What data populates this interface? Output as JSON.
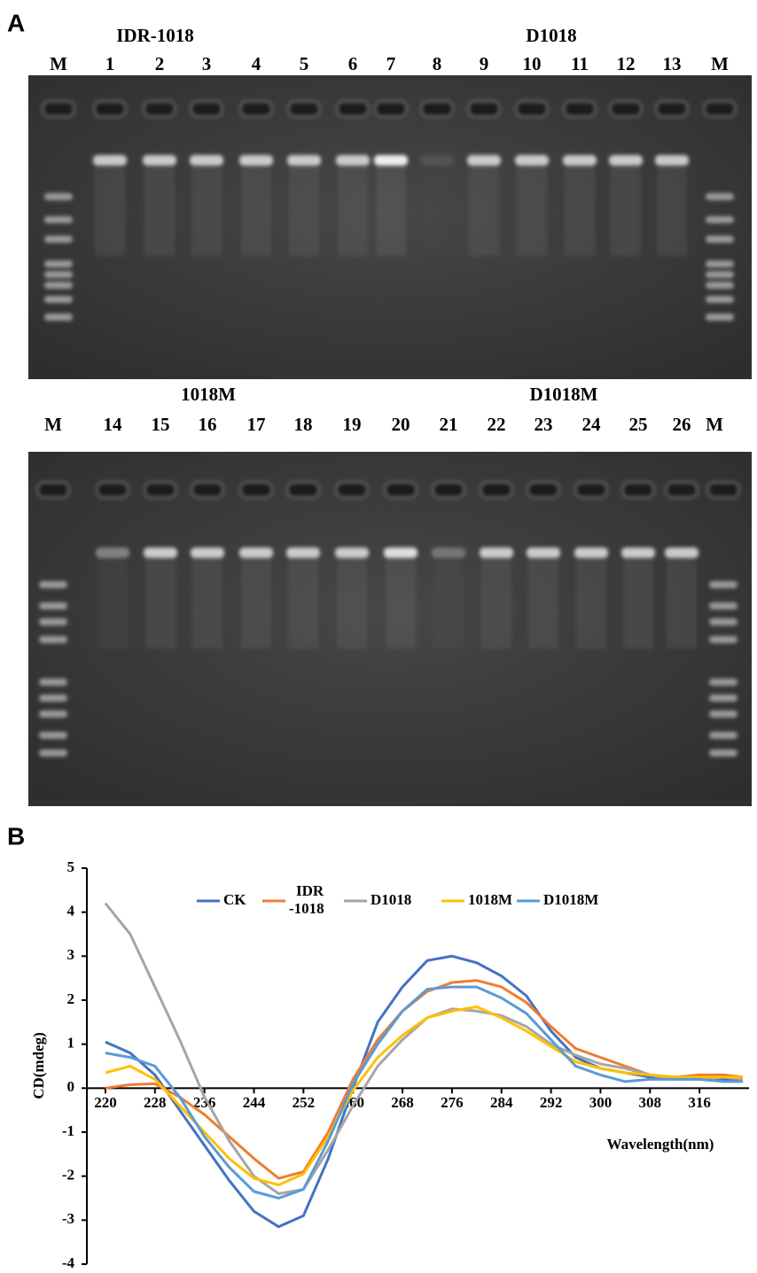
{
  "panel_a": {
    "label": "A",
    "gels": [
      {
        "groups": [
          "IDR-1018",
          "D1018"
        ],
        "lanes": [
          "M",
          "1",
          "2",
          "3",
          "4",
          "5",
          "6",
          "7",
          "8",
          "9",
          "10",
          "11",
          "12",
          "13",
          "M"
        ]
      },
      {
        "groups": [
          "1018M",
          "D1018M"
        ],
        "lanes": [
          "M",
          "14",
          "15",
          "16",
          "17",
          "18",
          "19",
          "20",
          "21",
          "22",
          "23",
          "24",
          "25",
          "26",
          "M"
        ]
      }
    ]
  },
  "panel_b": {
    "label": "B"
  },
  "chart_data": {
    "type": "line",
    "x_label": "Wavelength(nm)",
    "y_label": "CD(mdeg)",
    "x": [
      220,
      224,
      228,
      232,
      236,
      240,
      244,
      248,
      252,
      256,
      260,
      264,
      268,
      272,
      276,
      280,
      284,
      288,
      292,
      296,
      300,
      304,
      308,
      312,
      316,
      320,
      323
    ],
    "xlim": [
      217,
      324
    ],
    "xticks": [
      220,
      228,
      236,
      244,
      252,
      260,
      268,
      276,
      284,
      292,
      300,
      308,
      316
    ],
    "ylim": [
      -4,
      5
    ],
    "yticks": [
      -4,
      -3,
      -2,
      -1,
      0,
      1,
      2,
      3,
      4,
      5
    ],
    "legend": "top",
    "series": [
      {
        "name": "CK",
        "color": "#4472c4",
        "values": [
          1.05,
          0.8,
          0.3,
          -0.5,
          -1.3,
          -2.1,
          -2.8,
          -3.15,
          -2.9,
          -1.6,
          0,
          1.5,
          2.3,
          2.9,
          3.0,
          2.85,
          2.55,
          2.1,
          1.3,
          0.7,
          0.45,
          0.35,
          0.25,
          0.25,
          0.25,
          0.2,
          0.2
        ]
      },
      {
        "name": "IDR\n-1018",
        "color": "#ed7d31",
        "values": [
          0,
          0.08,
          0.1,
          -0.2,
          -0.6,
          -1.1,
          -1.6,
          -2.05,
          -1.9,
          -1.0,
          0.2,
          1.1,
          1.75,
          2.2,
          2.4,
          2.45,
          2.3,
          1.95,
          1.4,
          0.9,
          0.7,
          0.5,
          0.3,
          0.25,
          0.3,
          0.3,
          0.25
        ]
      },
      {
        "name": "D1018",
        "color": "#a5a5a5",
        "values": [
          4.2,
          3.5,
          2.3,
          1.1,
          -0.2,
          -1.2,
          -2.0,
          -2.4,
          -2.3,
          -1.4,
          -0.4,
          0.5,
          1.1,
          1.6,
          1.8,
          1.75,
          1.65,
          1.4,
          1.0,
          0.75,
          0.55,
          0.45,
          0.3,
          0.2,
          0.2,
          0.25,
          0.2
        ]
      },
      {
        "name": "1018M",
        "color": "#ffc000",
        "values": [
          0.35,
          0.5,
          0.2,
          -0.4,
          -1.0,
          -1.6,
          -2.05,
          -2.2,
          -1.95,
          -1.1,
          -0.05,
          0.7,
          1.2,
          1.6,
          1.75,
          1.85,
          1.6,
          1.3,
          0.95,
          0.6,
          0.45,
          0.35,
          0.3,
          0.25,
          0.25,
          0.25,
          0.25
        ]
      },
      {
        "name": "D1018M",
        "color": "#5b9bd5",
        "values": [
          0.8,
          0.7,
          0.5,
          -0.2,
          -1.1,
          -1.8,
          -2.35,
          -2.5,
          -2.3,
          -1.2,
          0.1,
          1.0,
          1.75,
          2.25,
          2.3,
          2.3,
          2.05,
          1.7,
          1.1,
          0.5,
          0.3,
          0.15,
          0.2,
          0.2,
          0.2,
          0.15,
          0.15
        ]
      }
    ]
  }
}
